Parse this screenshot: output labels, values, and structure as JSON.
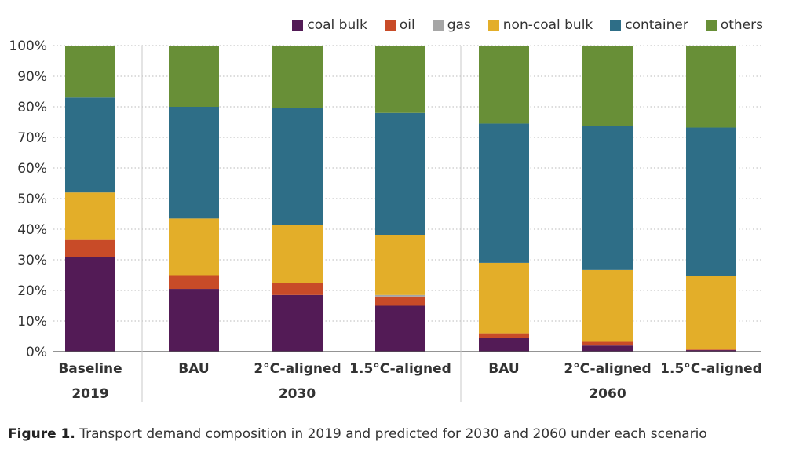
{
  "chart_data": {
    "type": "bar",
    "stacked": true,
    "categories": [
      "Baseline",
      "BAU",
      "2°C-aligned",
      "1.5°C-aligned",
      "BAU",
      "2°C-aligned",
      "1.5°C-aligned"
    ],
    "groups": [
      {
        "label": "2019",
        "start": 0,
        "end": 0
      },
      {
        "label": "2030",
        "start": 1,
        "end": 3
      },
      {
        "label": "2060",
        "start": 4,
        "end": 6
      }
    ],
    "series": [
      {
        "name": "coal bulk",
        "color": "#531b56",
        "values": [
          31,
          20.5,
          18.5,
          15,
          4.5,
          2,
          0.5
        ]
      },
      {
        "name": "oil",
        "color": "#c84b28",
        "values": [
          5.5,
          4.5,
          4,
          3,
          1.5,
          1.2,
          0.2
        ]
      },
      {
        "name": "gas",
        "color": "#a6a6a6",
        "values": [
          0,
          0,
          0,
          0.5,
          0,
          0,
          0
        ]
      },
      {
        "name": "non-coal bulk",
        "color": "#e3ae29",
        "values": [
          15.5,
          18.5,
          19,
          19.5,
          23,
          23.5,
          24
        ]
      },
      {
        "name": "container",
        "color": "#2e6e87",
        "values": [
          31,
          36.5,
          38,
          40,
          45.5,
          47,
          48.5
        ]
      },
      {
        "name": "others",
        "color": "#688f37",
        "values": [
          17,
          20,
          20.5,
          22,
          25.5,
          26.3,
          26.8
        ]
      }
    ],
    "y_ticks": [
      "0%",
      "10%",
      "20%",
      "30%",
      "40%",
      "50%",
      "60%",
      "70%",
      "80%",
      "90%",
      "100%"
    ],
    "ylim": [
      0,
      100
    ],
    "grid": true,
    "legend_position": "top-right"
  },
  "caption": {
    "label": "Figure 1.",
    "text": " Transport demand composition in 2019 and predicted for 2030 and 2060 under each scenario"
  }
}
